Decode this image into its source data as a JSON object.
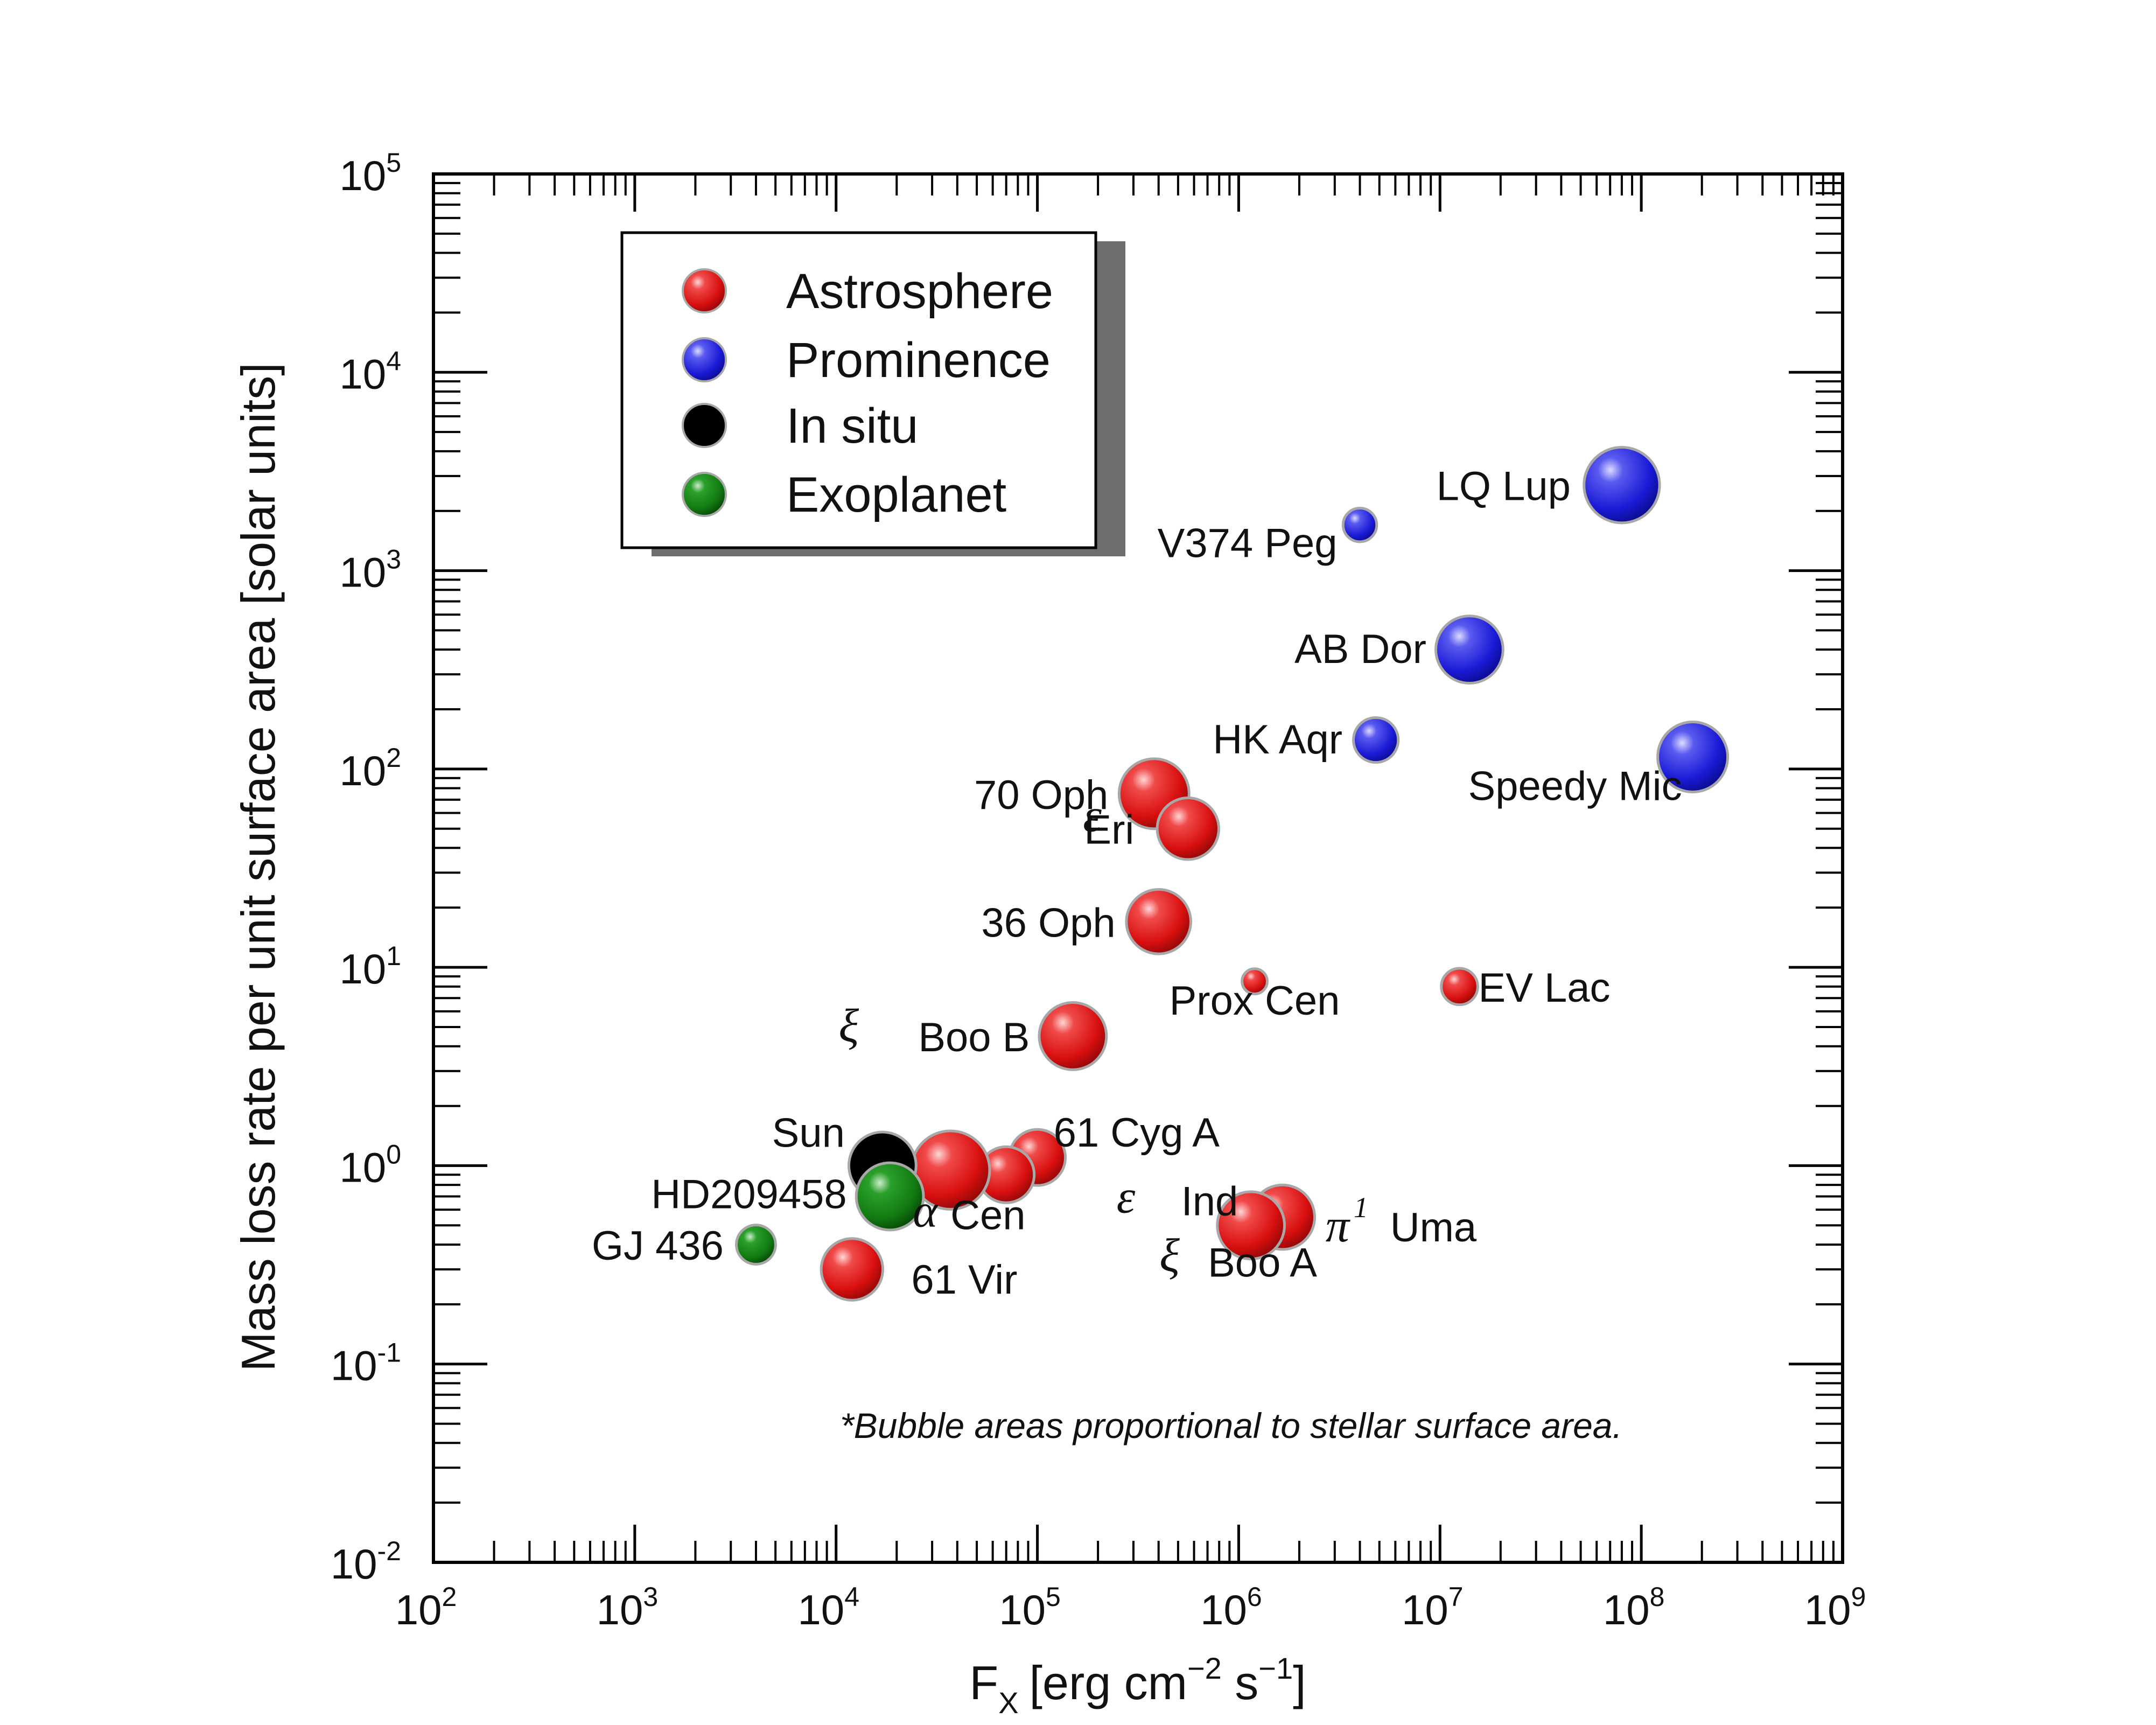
{
  "chart_data": {
    "type": "scatter",
    "subtype": "bubble",
    "xscale": "log",
    "yscale": "log",
    "xlim": [
      100,
      1000000000
    ],
    "ylim": [
      0.01,
      100000
    ],
    "xlabel": {
      "main": "F",
      "sub": "X",
      "unit_prefix": "[erg cm",
      "exp1": "−2",
      "mid": " s",
      "exp2": "−1",
      "unit_suffix": "]"
    },
    "ylabel": "Mass loss rate per unit surface area [solar units]",
    "x_ticks": [
      {
        "base": "10",
        "exp": "2"
      },
      {
        "base": "10",
        "exp": "3"
      },
      {
        "base": "10",
        "exp": "4"
      },
      {
        "base": "10",
        "exp": "5"
      },
      {
        "base": "10",
        "exp": "6"
      },
      {
        "base": "10",
        "exp": "7"
      },
      {
        "base": "10",
        "exp": "8"
      },
      {
        "base": "10",
        "exp": "9"
      }
    ],
    "y_ticks": [
      {
        "base": "10",
        "exp": "-2"
      },
      {
        "base": "10",
        "exp": "-1"
      },
      {
        "base": "10",
        "exp": "0"
      },
      {
        "base": "10",
        "exp": "1"
      },
      {
        "base": "10",
        "exp": "2"
      },
      {
        "base": "10",
        "exp": "3"
      },
      {
        "base": "10",
        "exp": "4"
      },
      {
        "base": "10",
        "exp": "5"
      }
    ],
    "colors": {
      "Astrosphere": "#dd1111",
      "Prominence": "#1a1ad6",
      "In situ": "#e6e010",
      "Exoplanet": "#127a12"
    },
    "legend": {
      "position": "top-left",
      "entries": [
        "Astrosphere",
        "Prominence",
        "In situ",
        "Exoplanet"
      ]
    },
    "annotation": "*Bubble areas proportional to stellar surface area.",
    "points": [
      {
        "name": "LQ Lup",
        "x": 80000000,
        "y": 2700,
        "category": "Prominence",
        "size": 1.35
      },
      {
        "name": "V374 Peg",
        "x": 4000000,
        "y": 1700,
        "category": "Prominence",
        "size": 0.6
      },
      {
        "name": "AB Dor",
        "x": 14000000,
        "y": 400,
        "category": "Prominence",
        "size": 1.2
      },
      {
        "name": "HK Aqr",
        "x": 4800000,
        "y": 140,
        "category": "Prominence",
        "size": 0.8
      },
      {
        "name": "Speedy Mic",
        "x": 180000000,
        "y": 115,
        "category": "Prominence",
        "size": 1.25
      },
      {
        "name": "70 Oph",
        "x": 380000,
        "y": 75,
        "category": "Astrosphere",
        "size": 1.25
      },
      {
        "name": "Eri",
        "greek": "ε",
        "x": 560000,
        "y": 50,
        "category": "Astrosphere",
        "size": 1.1
      },
      {
        "name": "36 Oph",
        "x": 400000,
        "y": 17,
        "category": "Astrosphere",
        "size": 1.15
      },
      {
        "name": "Prox Cen",
        "x": 1200000,
        "y": 8.5,
        "category": "Astrosphere",
        "size": 0.45
      },
      {
        "name": "EV Lac",
        "x": 12500000,
        "y": 8,
        "category": "Astrosphere",
        "size": 0.65
      },
      {
        "name": "Boo B",
        "greek": "ξ",
        "x": 150000,
        "y": 4.5,
        "category": "Astrosphere",
        "size": 1.2
      },
      {
        "name": "61 Cyg A",
        "x": 100000,
        "y": 1.1,
        "category": "Astrosphere",
        "size": 1.0
      },
      {
        "name": "Ind",
        "greek": "ε",
        "x": 70000,
        "y": 0.9,
        "category": "Astrosphere",
        "size": 1.0
      },
      {
        "name": "Cen",
        "greek": "α",
        "x": 37000,
        "y": 0.95,
        "category": "Astrosphere",
        "size": 1.4
      },
      {
        "name": "Sun",
        "x": 17000,
        "y": 1.0,
        "category": "In situ",
        "size": 1.2
      },
      {
        "name": "HD209458",
        "x": 18500,
        "y": 0.7,
        "category": "Exoplanet",
        "size": 1.2
      },
      {
        "name": "Uma",
        "greek": "π",
        "greek_sup": "1",
        "x": 1650000,
        "y": 0.55,
        "category": "Astrosphere",
        "size": 1.15
      },
      {
        "name": "Boo A",
        "greek": "ξ",
        "x": 1150000,
        "y": 0.5,
        "category": "Astrosphere",
        "size": 1.2
      },
      {
        "name": "GJ 436",
        "x": 4000,
        "y": 0.4,
        "category": "Exoplanet",
        "size": 0.7
      },
      {
        "name": "61 Vir",
        "x": 12000,
        "y": 0.3,
        "category": "Astrosphere",
        "size": 1.1
      }
    ]
  }
}
